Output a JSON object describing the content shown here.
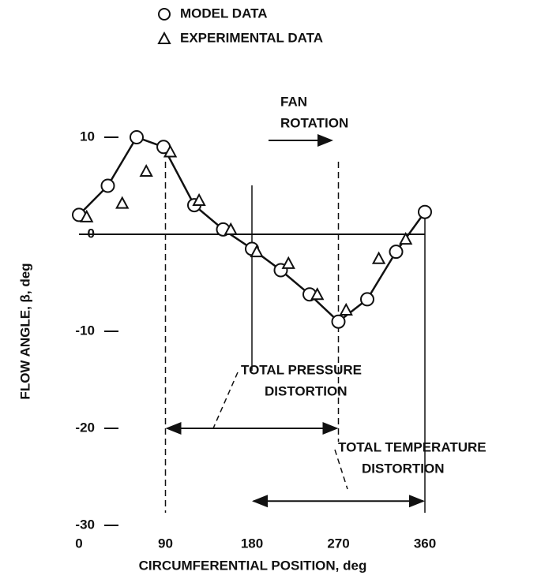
{
  "chart_data": {
    "type": "line",
    "xlabel": "CIRCUMFERENTIAL POSITION, deg",
    "ylabel": "FLOW ANGLE, β, deg",
    "xlim": [
      0,
      360
    ],
    "xticks": [
      0,
      90,
      180,
      270,
      360
    ],
    "ylim": [
      -30,
      10
    ],
    "yticks": [
      10,
      0,
      -10,
      -20,
      -30
    ],
    "series": [
      {
        "name": "MODEL DATA",
        "marker": "circle",
        "line": true,
        "color": "#111",
        "x": [
          0,
          30,
          60,
          88,
          120,
          150,
          180,
          210,
          240,
          270,
          300,
          330,
          360
        ],
        "values": [
          2,
          5,
          10,
          9,
          3,
          0.5,
          -1.5,
          -3.7,
          -6.2,
          -9,
          -6.7,
          -1.8,
          2.3
        ]
      },
      {
        "name": "EXPERIMENTAL DATA",
        "marker": "triangle",
        "line": false,
        "color": "#111",
        "x": [
          8,
          45,
          70,
          95,
          125,
          158,
          185,
          218,
          248,
          278,
          312,
          340
        ],
        "values": [
          1.8,
          3.2,
          6.5,
          8.5,
          3.5,
          0.5,
          -1.8,
          -3,
          -6.2,
          -7.8,
          -2.5,
          -0.5
        ]
      }
    ],
    "vlines": [
      {
        "x": 90,
        "style": "dashed"
      },
      {
        "x": 180,
        "style": "solid"
      },
      {
        "x": 270,
        "style": "dashed"
      },
      {
        "x": 360,
        "style": "solid"
      }
    ],
    "annotations": [
      {
        "lines": [
          "FAN",
          "ROTATION"
        ]
      },
      {
        "lines": [
          "TOTAL PRESSURE",
          "DISTORTION"
        ],
        "span": [
          90,
          270
        ],
        "y": -20
      },
      {
        "lines": [
          "TOTAL TEMPERATURE",
          "DISTORTION"
        ],
        "span": [
          180,
          360
        ],
        "y": -27.5
      }
    ]
  }
}
